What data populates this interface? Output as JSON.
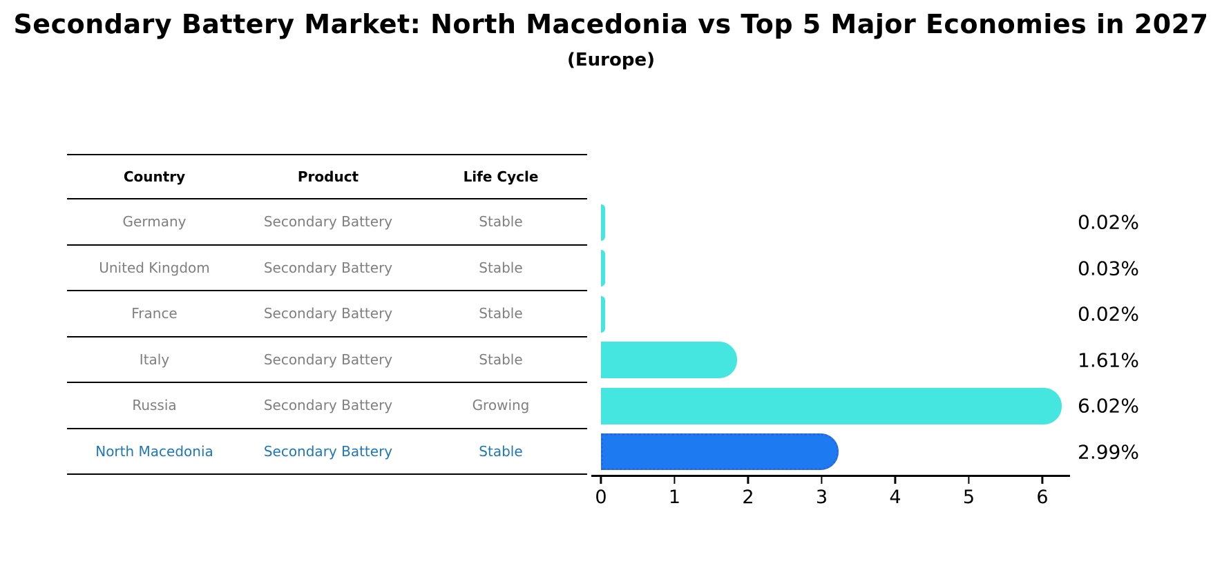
{
  "title": "Secondary Battery Market: North Macedonia vs Top 5 Major Economies in 2027",
  "subtitle": "(Europe)",
  "table": {
    "headers": [
      "Country",
      "Product",
      "Life Cycle"
    ],
    "rows": [
      {
        "country": "Germany",
        "product": "Secondary Battery",
        "life_cycle": "Stable",
        "highlight": false
      },
      {
        "country": "United Kingdom",
        "product": "Secondary Battery",
        "life_cycle": "Stable",
        "highlight": false
      },
      {
        "country": "France",
        "product": "Secondary Battery",
        "life_cycle": "Stable",
        "highlight": false
      },
      {
        "country": "Italy",
        "product": "Secondary Battery",
        "life_cycle": "Stable",
        "highlight": false
      },
      {
        "country": "Russia",
        "product": "Secondary Battery",
        "life_cycle": "Growing",
        "highlight": false
      },
      {
        "country": "North Macedonia",
        "product": "Secondary Battery",
        "life_cycle": "Stable",
        "highlight": true
      }
    ]
  },
  "chart_data": {
    "type": "bar",
    "orientation": "horizontal",
    "title": "Secondary Battery Market: North Macedonia vs Top 5 Major Economies in 2027 (Europe)",
    "categories": [
      "Germany",
      "United Kingdom",
      "France",
      "Italy",
      "Russia",
      "North Macedonia"
    ],
    "values": [
      0.02,
      0.03,
      0.02,
      1.61,
      6.02,
      2.99
    ],
    "labels": [
      "0.02%",
      "0.03%",
      "0.02%",
      "1.61%",
      "6.02%",
      "2.99%"
    ],
    "unit": "%",
    "x_ticks": [
      0,
      1,
      2,
      3,
      4,
      5,
      6
    ],
    "xlim": [
      0,
      6.5
    ],
    "grid": false,
    "legend": "none",
    "highlight_index": 5,
    "colors": {
      "default_bar": "#45e6e0",
      "highlight_bar": "#1e7af0",
      "highlight_border": "#2a66d9",
      "grey_text": "#7f7f7f",
      "highlight_text": "#1f77b4",
      "axis": "#000000"
    }
  }
}
